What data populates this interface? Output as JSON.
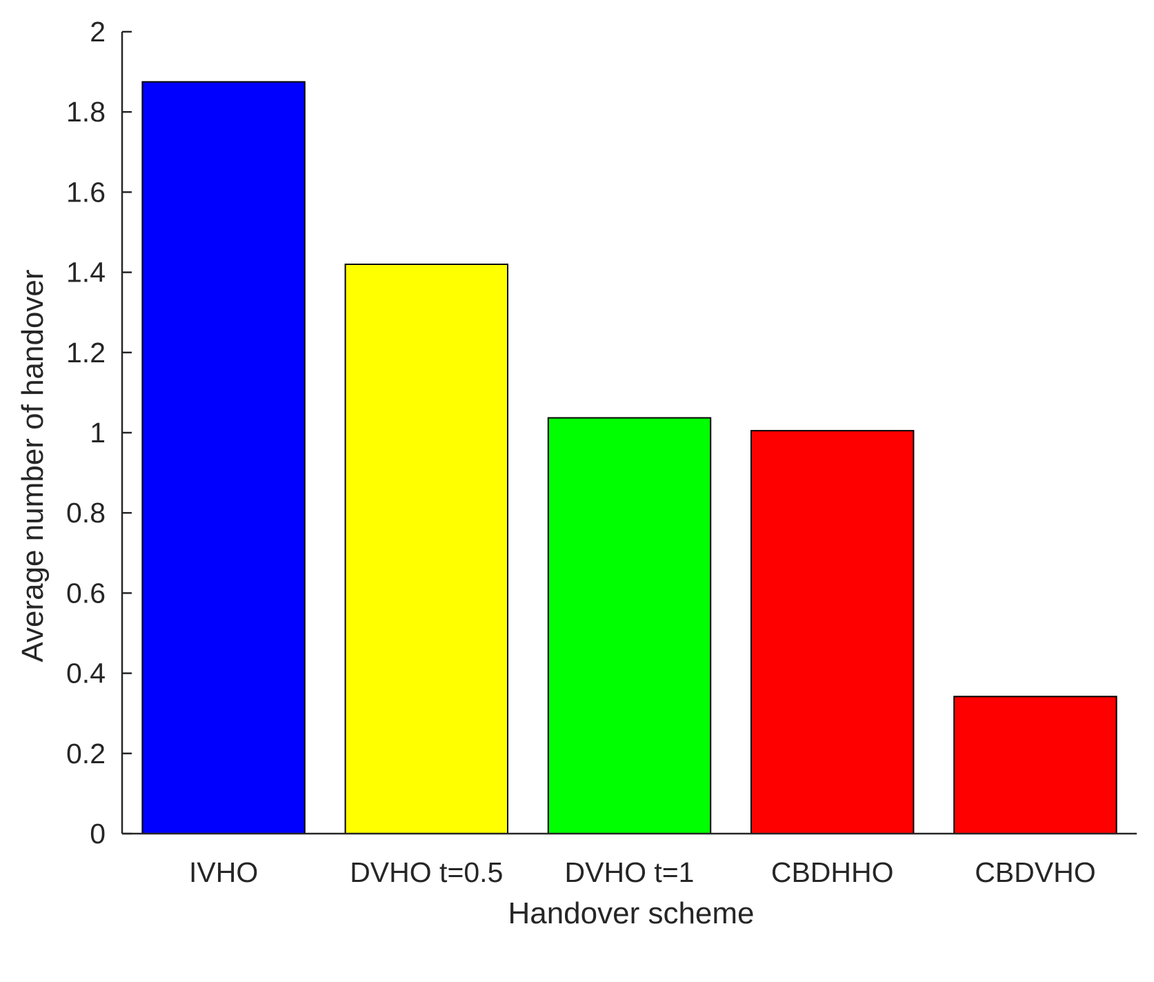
{
  "chart_data": {
    "type": "bar",
    "categories": [
      "IVHO",
      "DVHO t=0.5",
      "DVHO t=1",
      "CBDHHO",
      "CBDVHO"
    ],
    "values": [
      1.875,
      1.42,
      1.037,
      1.005,
      0.342
    ],
    "colors": [
      "#0000ff",
      "#ffff00",
      "#00ff00",
      "#ff0000",
      "#ff0000"
    ],
    "bar_edge_color": "#000000",
    "title": "",
    "xlabel": "Handover scheme",
    "ylabel": "Average number of handover",
    "ylim": [
      0,
      2
    ],
    "yticks": [
      0,
      0.2,
      0.4,
      0.6,
      0.8,
      1,
      1.2,
      1.4,
      1.6,
      1.8,
      2
    ],
    "ytick_labels": [
      "0",
      "0.2",
      "0.4",
      "0.6",
      "0.8",
      "1",
      "1.2",
      "1.4",
      "1.6",
      "1.8",
      "2"
    ],
    "grid": false,
    "legend": "none",
    "axes_color": "#262626"
  }
}
